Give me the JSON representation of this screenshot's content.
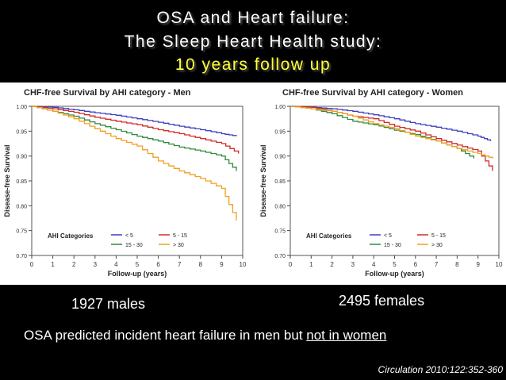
{
  "slide": {
    "title_line1": "OSA and Heart failure:",
    "title_line2": "The Sleep Heart Health study:",
    "title_line3": "10 years follow up",
    "males_label": "1927 males",
    "females_label": "2495 females",
    "summary_pre": "OSA predicted incident heart failure in men but ",
    "summary_underlined": "not in women",
    "citation": "Circulation 2010:122:352-360"
  },
  "colors": {
    "lt5": "#3f3fbf",
    "5-15": "#d12a2a",
    "15-30": "#2e8b3a",
    "gt30": "#f0a020"
  },
  "chart_data": [
    {
      "type": "line",
      "title": "CHF-free Survival by AHI category - Men",
      "xlabel": "Follow-up (years)",
      "ylabel": "Disease-free Survival",
      "xlim": [
        0,
        10
      ],
      "ylim": [
        0.7,
        1.0
      ],
      "xticks": [
        "0",
        "1",
        "2",
        "3",
        "4",
        "5",
        "6",
        "7",
        "8",
        "9",
        "10"
      ],
      "yticks": [
        "0.70",
        "0.75",
        "0.80",
        "0.85",
        "0.90",
        "0.95",
        "1.00"
      ],
      "legend_title": "AHI Categories",
      "legend_position": "bottom-left",
      "series": [
        {
          "name": "< 5",
          "color_key": "lt5",
          "x": [
            0,
            1,
            2,
            3,
            4,
            5,
            6,
            7,
            8,
            9,
            9.7
          ],
          "y": [
            1.0,
            0.998,
            0.993,
            0.987,
            0.982,
            0.975,
            0.968,
            0.96,
            0.953,
            0.945,
            0.94
          ]
        },
        {
          "name": "5 - 15",
          "color_key": "5-15",
          "x": [
            0,
            1,
            2,
            3,
            4,
            5,
            6,
            7,
            8,
            9,
            9.8
          ],
          "y": [
            1.0,
            0.995,
            0.988,
            0.978,
            0.97,
            0.963,
            0.953,
            0.945,
            0.935,
            0.925,
            0.905
          ]
        },
        {
          "name": "15 - 30",
          "color_key": "15-30",
          "x": [
            0,
            1,
            2,
            3,
            4,
            5,
            6,
            7,
            8,
            9,
            9.7
          ],
          "y": [
            1.0,
            0.99,
            0.98,
            0.965,
            0.953,
            0.94,
            0.93,
            0.918,
            0.91,
            0.9,
            0.87
          ]
        },
        {
          "name": "> 30",
          "color_key": "gt30",
          "x": [
            0,
            1,
            2,
            3,
            4,
            5,
            6,
            7,
            8,
            9,
            9.7
          ],
          "y": [
            1.0,
            0.99,
            0.975,
            0.955,
            0.935,
            0.92,
            0.89,
            0.87,
            0.855,
            0.835,
            0.77
          ]
        }
      ]
    },
    {
      "type": "line",
      "title": "CHF-free Survival by AHI category - Women",
      "xlabel": "Follow-up (years)",
      "ylabel": "Disease-free Survival",
      "xlim": [
        0,
        10
      ],
      "ylim": [
        0.7,
        1.0
      ],
      "xticks": [
        "0",
        "1",
        "2",
        "3",
        "4",
        "5",
        "6",
        "7",
        "8",
        "9",
        "10"
      ],
      "yticks": [
        "0.70",
        "0.75",
        "0.80",
        "0.85",
        "0.90",
        "0.95",
        "1.00"
      ],
      "legend_title": "AHI Categories",
      "legend_position": "bottom-left",
      "series": [
        {
          "name": "< 5",
          "color_key": "lt5",
          "x": [
            0,
            1,
            2,
            3,
            4,
            5,
            6,
            7,
            8,
            9,
            9.6
          ],
          "y": [
            1.0,
            0.998,
            0.995,
            0.99,
            0.983,
            0.975,
            0.965,
            0.958,
            0.95,
            0.94,
            0.93
          ]
        },
        {
          "name": "5 - 15",
          "color_key": "5-15",
          "x": [
            0,
            1,
            2,
            3,
            4,
            5,
            6,
            7,
            8,
            9,
            9.7
          ],
          "y": [
            1.0,
            0.998,
            0.99,
            0.98,
            0.975,
            0.96,
            0.95,
            0.935,
            0.922,
            0.91,
            0.87
          ]
        },
        {
          "name": "15 - 30",
          "color_key": "15-30",
          "x": [
            0,
            1,
            2,
            3,
            4,
            5,
            6,
            7,
            8,
            8.8
          ],
          "y": [
            1.0,
            0.995,
            0.985,
            0.97,
            0.963,
            0.952,
            0.943,
            0.93,
            0.915,
            0.895
          ]
        },
        {
          "name": "> 30",
          "color_key": "gt30",
          "x": [
            0,
            1,
            2,
            3,
            4,
            5,
            6,
            7,
            8,
            9,
            9.7
          ],
          "y": [
            1.0,
            0.995,
            0.99,
            0.98,
            0.965,
            0.955,
            0.94,
            0.93,
            0.915,
            0.905,
            0.895
          ]
        }
      ]
    }
  ]
}
